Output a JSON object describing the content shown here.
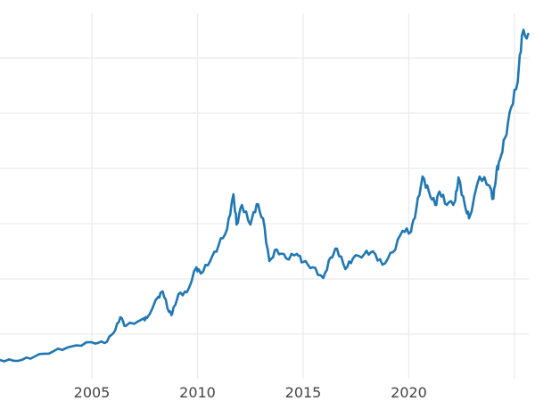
{
  "chart_data": {
    "type": "line",
    "title": "",
    "xlabel": "",
    "ylabel": "",
    "xlim": [
      2000.65,
      2025.67
    ],
    "ylim": [
      0,
      3400
    ],
    "grid": true,
    "legend": "none",
    "x_ticks": [
      2005,
      2010,
      2015,
      2020,
      2025
    ],
    "x_tick_labels": [
      "2005",
      "2010",
      "2015",
      "2020",
      ""
    ],
    "y_gridlines": [
      500,
      1000,
      1500,
      2000,
      2500,
      3000
    ],
    "y_tick_labels_shown": false,
    "colors": {
      "line": "#1f77b4",
      "grid": "#ebebeb",
      "tick_text": "#444444"
    },
    "series": [
      {
        "x": [
          2000.65,
          2001.5,
          2002.3,
          2003.2,
          2004.0,
          2005.0,
          2005.6,
          2006.05,
          2006.35,
          2006.6,
          2007.4,
          2007.6,
          2008.15,
          2008.35,
          2008.65,
          2008.8,
          2009.1,
          2009.5,
          2009.95,
          2010.15,
          2010.6,
          2011.0,
          2011.4,
          2011.7,
          2011.85,
          2012.1,
          2012.5,
          2012.8,
          2013.1,
          2013.4,
          2013.75,
          2014.2,
          2014.7,
          2015.0,
          2015.45,
          2015.95,
          2016.3,
          2016.6,
          2017.0,
          2017.35,
          2017.9,
          2018.3,
          2018.75,
          2019.25,
          2019.7,
          2020.1,
          2020.35,
          2020.65,
          2020.95,
          2021.25,
          2021.45,
          2021.8,
          2022.2,
          2022.35,
          2022.65,
          2022.85,
          2023.35,
          2023.8,
          2024.0,
          2024.15,
          2024.3,
          2024.55,
          2024.85,
          2025.15,
          2025.35,
          2025.65
        ],
        "y": [
          266,
          258,
          298,
          347,
          387,
          427,
          419,
          516,
          653,
          573,
          637,
          645,
          839,
          887,
          702,
          685,
          863,
          879,
          1105,
          1048,
          1161,
          1306,
          1452,
          1766,
          1492,
          1669,
          1492,
          1677,
          1548,
          1161,
          1266,
          1185,
          1226,
          1153,
          1105,
          1008,
          1194,
          1274,
          1089,
          1185,
          1226,
          1250,
          1129,
          1242,
          1435,
          1427,
          1629,
          1927,
          1790,
          1669,
          1790,
          1669,
          1710,
          1919,
          1669,
          1548,
          1927,
          1847,
          1726,
          1976,
          2073,
          2274,
          2556,
          2782,
          3202,
          3218
        ]
      }
    ]
  }
}
